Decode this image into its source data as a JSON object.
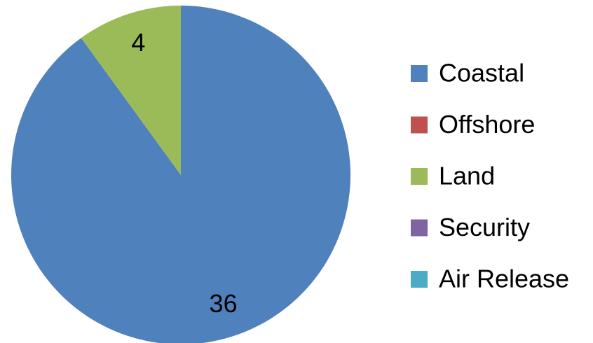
{
  "chart_data": {
    "type": "pie",
    "categories": [
      "Coastal",
      "Offshore",
      "Land",
      "Security",
      "Air Release"
    ],
    "values": [
      36,
      0,
      4,
      0,
      0
    ],
    "colors": [
      "#4f81bd",
      "#c0504d",
      "#9bbb59",
      "#8064a2",
      "#4bacc6"
    ],
    "legend": "right"
  }
}
